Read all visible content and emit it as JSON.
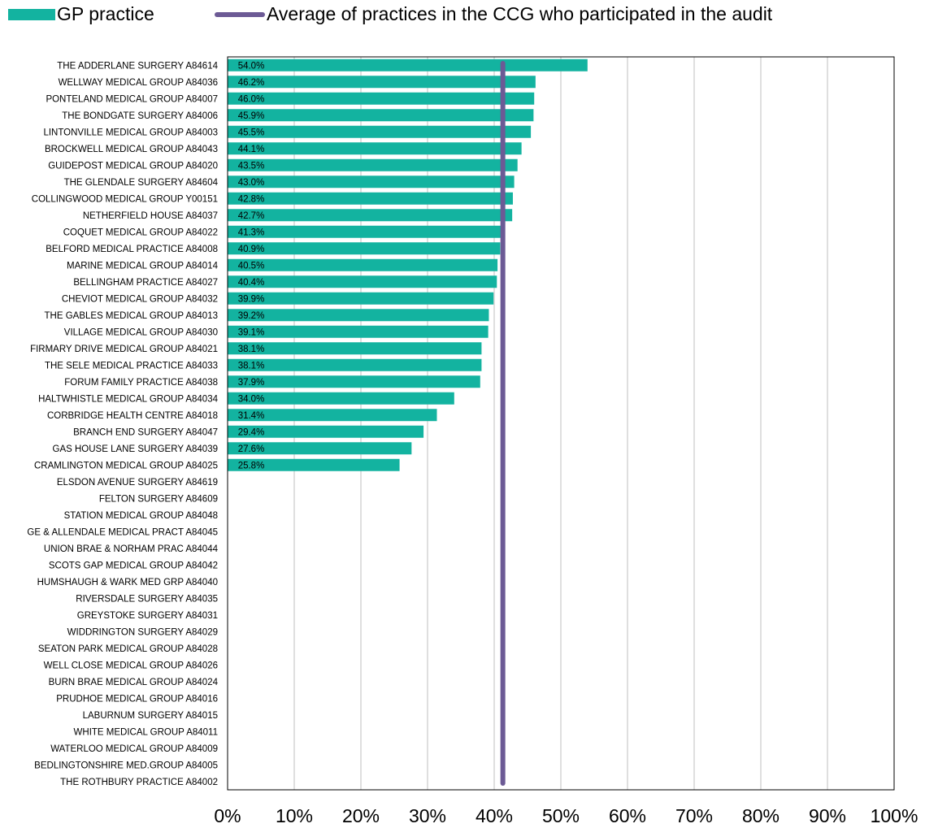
{
  "legend": {
    "gp_label": "GP practice",
    "avg_label": "Average of practices in the CCG who participated in the audit"
  },
  "colors": {
    "bar": "#13b3a0",
    "average": "#6c5a95",
    "grid": "#bfbfbf",
    "axis": "#000000"
  },
  "chart_data": {
    "type": "bar",
    "orientation": "horizontal",
    "xlim": [
      0,
      100
    ],
    "x_ticks": [
      "0%",
      "10%",
      "20%",
      "30%",
      "40%",
      "50%",
      "60%",
      "70%",
      "80%",
      "90%",
      "100%"
    ],
    "grid": true,
    "legend_position": "top",
    "average": 41.3,
    "categories": [
      "THE ADDERLANE SURGERY A84614",
      "WELLWAY MEDICAL GROUP A84036",
      "PONTELAND MEDICAL GROUP A84007",
      "THE BONDGATE SURGERY A84006",
      "LINTONVILLE MEDICAL GROUP A84003",
      "BROCKWELL MEDICAL GROUP A84043",
      "GUIDEPOST MEDICAL GROUP A84020",
      "THE GLENDALE SURGERY A84604",
      "COLLINGWOOD MEDICAL GROUP Y00151",
      "NETHERFIELD HOUSE A84037",
      "COQUET MEDICAL GROUP A84022",
      "BELFORD MEDICAL PRACTICE A84008",
      "MARINE MEDICAL GROUP A84014",
      "BELLINGHAM PRACTICE A84027",
      "CHEVIOT MEDICAL GROUP A84032",
      "THE GABLES MEDICAL GROUP A84013",
      "VILLAGE MEDICAL GROUP A84030",
      "FIRMARY DRIVE MEDICAL GROUP A84021",
      "THE SELE MEDICAL PRACTICE A84033",
      "FORUM FAMILY PRACTICE A84038",
      "HALTWHISTLE MEDICAL GROUP A84034",
      "CORBRIDGE HEALTH CENTRE A84018",
      "BRANCH END SURGERY A84047",
      "GAS HOUSE LANE SURGERY A84039",
      "CRAMLINGTON MEDICAL GROUP A84025",
      "ELSDON AVENUE SURGERY A84619",
      "FELTON SURGERY A84609",
      "STATION MEDICAL GROUP A84048",
      "GE & ALLENDALE MEDICAL PRACT A84045",
      "UNION BRAE & NORHAM PRAC A84044",
      "SCOTS GAP MEDICAL GROUP A84042",
      "HUMSHAUGH & WARK MED GRP A84040",
      "RIVERSDALE SURGERY A84035",
      "GREYSTOKE SURGERY A84031",
      "WIDDRINGTON SURGERY A84029",
      "SEATON PARK MEDICAL GROUP A84028",
      "WELL CLOSE MEDICAL GROUP A84026",
      "BURN BRAE MEDICAL GROUP A84024",
      "PRUDHOE MEDICAL GROUP A84016",
      "LABURNUM SURGERY A84015",
      "WHITE MEDICAL GROUP A84011",
      "WATERLOO MEDICAL GROUP A84009",
      "BEDLINGTONSHIRE MED.GROUP A84005",
      "THE ROTHBURY PRACTICE A84002"
    ],
    "values": [
      54.0,
      46.2,
      46.0,
      45.9,
      45.5,
      44.1,
      43.5,
      43.0,
      42.8,
      42.7,
      41.3,
      40.9,
      40.5,
      40.4,
      39.9,
      39.2,
      39.1,
      38.1,
      38.1,
      37.9,
      34.0,
      31.4,
      29.4,
      27.6,
      25.8,
      null,
      null,
      null,
      null,
      null,
      null,
      null,
      null,
      null,
      null,
      null,
      null,
      null,
      null,
      null,
      null,
      null,
      null,
      null
    ],
    "value_labels": [
      "54.0%",
      "46.2%",
      "46.0%",
      "45.9%",
      "45.5%",
      "44.1%",
      "43.5%",
      "43.0%",
      "42.8%",
      "42.7%",
      "41.3%",
      "40.9%",
      "40.5%",
      "40.4%",
      "39.9%",
      "39.2%",
      "39.1%",
      "38.1%",
      "38.1%",
      "37.9%",
      "34.0%",
      "31.4%",
      "29.4%",
      "27.6%",
      "25.8%",
      null,
      null,
      null,
      null,
      null,
      null,
      null,
      null,
      null,
      null,
      null,
      null,
      null,
      null,
      null,
      null,
      null,
      null,
      null
    ]
  }
}
